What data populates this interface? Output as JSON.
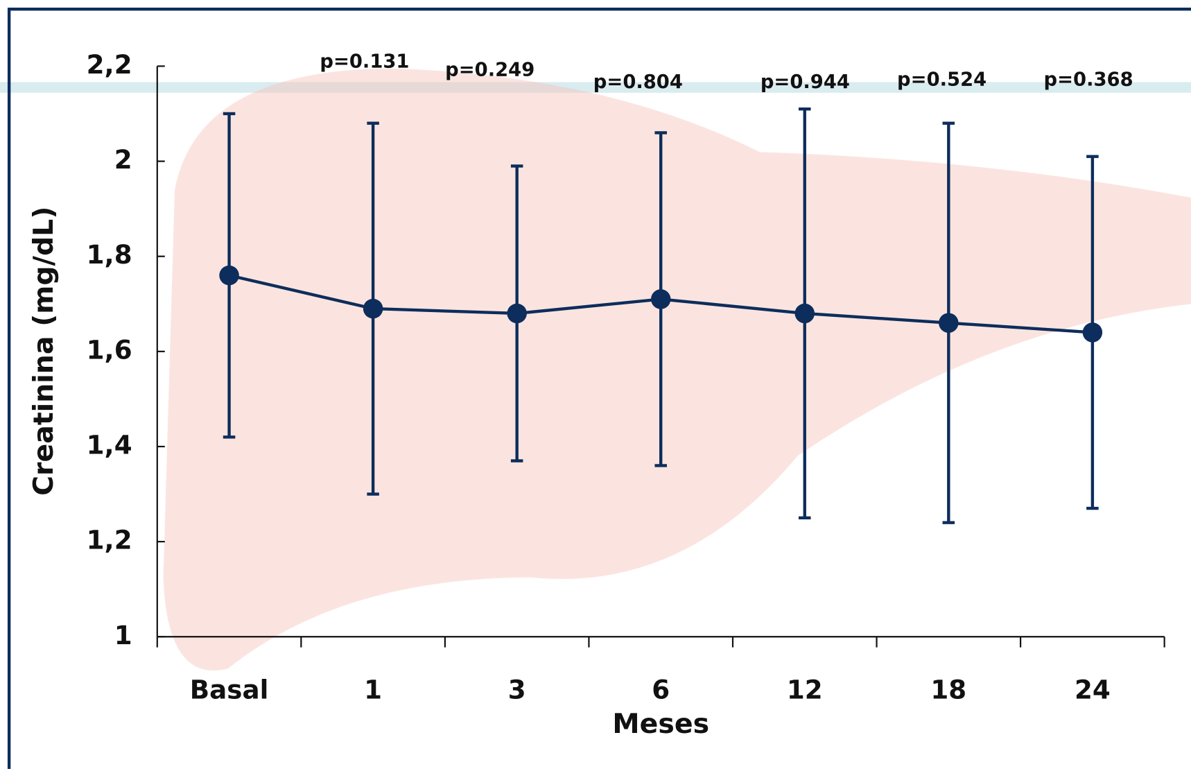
{
  "chart_data": {
    "type": "line",
    "y_label": "Creatinina (mg/dL)",
    "x_label": "Meses",
    "categories": [
      "Basal",
      "1",
      "3",
      "6",
      "12",
      "18",
      "24"
    ],
    "values": [
      1.76,
      1.69,
      1.68,
      1.71,
      1.68,
      1.66,
      1.64
    ],
    "errors": [
      0.34,
      0.39,
      0.31,
      0.35,
      0.43,
      0.42,
      0.37
    ],
    "color": "#0d2d5c",
    "ylim": [
      1,
      2.2
    ],
    "yticks": [
      1,
      {
        "value": 1.2,
        "label": "1,2"
      },
      {
        "value": 1.4,
        "label": "1,4"
      },
      {
        "value": 1.6,
        "label": "1,6"
      },
      {
        "value": 1.8,
        "label": "1,8"
      },
      2,
      {
        "value": 2.2,
        "label": "2,2"
      }
    ],
    "annotations": [
      "p=0.131",
      "p=0.249",
      "p=0.804",
      "p=0.944",
      "p=0.524",
      "p=0.368"
    ],
    "grid": false
  }
}
